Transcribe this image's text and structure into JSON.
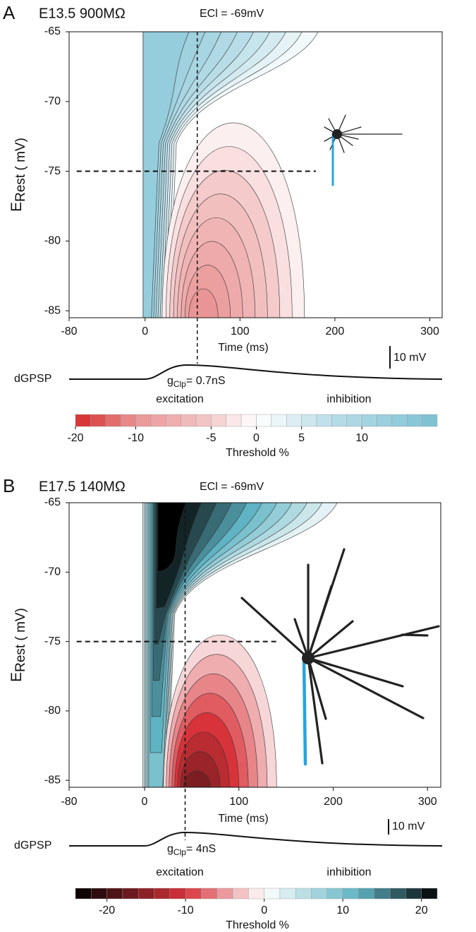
{
  "chart_data": [
    {
      "type": "contour",
      "panel": "A",
      "title": "E13.5  900MΩ",
      "annotation": "ECl = -69mV",
      "xlabel": "Time (ms)",
      "ylabel": "E",
      "ylabel_sub": "Rest ( mV)",
      "xlim": [
        -80,
        313
      ],
      "xticks": [
        -80,
        0,
        100,
        200,
        300
      ],
      "ylim": [
        -85.5,
        -65
      ],
      "yticks": [
        -85,
        -80,
        -75,
        -70,
        -65
      ],
      "vline_x": 55,
      "hline": {
        "y": -75,
        "x": [
          -72,
          180
        ]
      },
      "trace_label": "dGPSP",
      "g_main": "g",
      "g_sub": "Clp",
      "g_value": "= 0.7nS",
      "left_label": "excitation",
      "right_label": "inhibition",
      "scale_label": "10 mV",
      "colorbar": {
        "label": "Threshold %",
        "levels": [
          -20,
          -17.5,
          -15,
          -12.5,
          -10,
          -9,
          -8,
          -7,
          -6,
          -5,
          -3,
          -1.5,
          0,
          1.5,
          3,
          5,
          6.5,
          8,
          9,
          10,
          11,
          12,
          13,
          14,
          15
        ],
        "ticks": [
          -20,
          -10,
          -5,
          0,
          5,
          10
        ],
        "cmap": [
          {
            "value": -20,
            "color": "#d42a2a"
          },
          {
            "value": 0,
            "color": "#ffffff"
          },
          {
            "value": 15,
            "color": "#7cc0d3"
          }
        ]
      }
    },
    {
      "type": "contour",
      "panel": "B",
      "title": "E17.5  140MΩ",
      "annotation": "ECl = -69mV",
      "xlabel": "Time (ms)",
      "ylabel": "E",
      "ylabel_sub": "Rest ( mV)",
      "xlim": [
        -80,
        314
      ],
      "xticks": [
        -80,
        0,
        100,
        200,
        300
      ],
      "ylim": [
        -85.5,
        -65
      ],
      "yticks": [
        -85,
        -80,
        -75,
        -70,
        -65
      ],
      "vline_x": 43,
      "hline": {
        "y": -75,
        "x": [
          -72,
          140
        ]
      },
      "trace_label": "dGPSP",
      "g_main": "g",
      "g_sub": "Clp",
      "g_value": "= 4nS",
      "left_label": "excitation",
      "right_label": "inhibition",
      "scale_label": "10 mV",
      "colorbar": {
        "label": "Threshold %",
        "levels": [
          -24,
          -22,
          -20,
          -18,
          -16,
          -14,
          -12,
          -10,
          -8,
          -6,
          -4,
          -2,
          0,
          2,
          4,
          6,
          8,
          10,
          12,
          14,
          16,
          18,
          20,
          22
        ],
        "ticks": [
          -20,
          -10,
          0,
          10,
          20
        ],
        "cmap": [
          {
            "value": -24,
            "color": "#000000"
          },
          {
            "value": -10,
            "color": "#d8333a"
          },
          {
            "value": 0,
            "color": "#ffffff"
          },
          {
            "value": 12,
            "color": "#5fb3c3"
          },
          {
            "value": 22,
            "color": "#000000"
          }
        ]
      }
    }
  ]
}
